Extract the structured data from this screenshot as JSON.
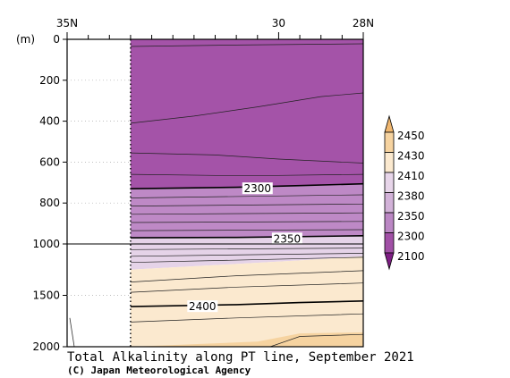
{
  "chart_data": {
    "type": "heatmap",
    "title": "Total Alkalinity along PT line, September 2021",
    "credit": "(C) Japan Meteorological Agency",
    "y_unit_label": "(m)",
    "x_tick_labels": [
      "35N",
      "30",
      "28N"
    ],
    "x_tick_values": [
      35,
      30,
      28
    ],
    "x_range": [
      35,
      28
    ],
    "data_x_start": 33.5,
    "y_tick_labels": [
      "0",
      "200",
      "400",
      "600",
      "800",
      "1000",
      "1500",
      "2000"
    ],
    "y_tick_values": [
      0,
      200,
      400,
      600,
      800,
      1000,
      1500,
      2000
    ],
    "y_scale": "piecewise linear: 0–1000 m upper section, 1000–2000 m lower section",
    "grid": true,
    "legend": {
      "placement": "right",
      "levels": [
        "2450",
        "2430",
        "2410",
        "2380",
        "2350",
        "2300",
        "2100"
      ],
      "colors": [
        "#f0b770",
        "#f6d3a0",
        "#fbe9cf",
        "#e7d5e9",
        "#d2b2d8",
        "#bb87c4",
        "#a150a6",
        "#7e1e84"
      ]
    },
    "colors": {
      "fill_2100_2300": "#a453a8",
      "fill_2300_2350": "#be89c6",
      "fill_2350_2380": "#e5d3e8",
      "fill_2380_2410": "#fbe9cf",
      "fill_2410_2430": "#f6d3a0"
    },
    "labeled_contours": [
      {
        "value": 2300,
        "label": "2300",
        "lat": 30.5,
        "depth": 730
      },
      {
        "value": 2350,
        "label": "2350",
        "lat": 29.8,
        "depth": 975
      },
      {
        "value": 2400,
        "label": "2400",
        "lat": 31.8,
        "depth": 1610
      }
    ]
  }
}
